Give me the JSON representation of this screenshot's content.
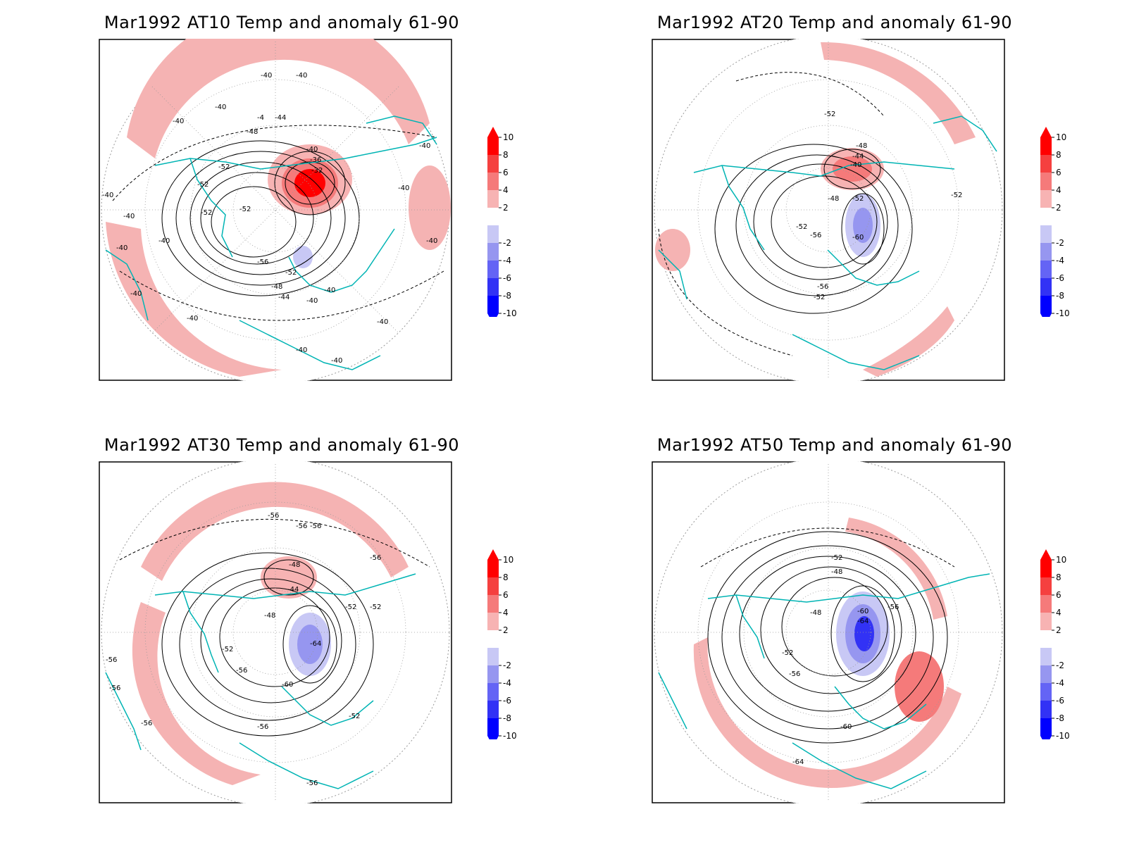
{
  "panels": [
    {
      "title": "Mar1992 AT10 Temp and anomaly 61-90",
      "contour_labels": [
        "-40",
        "-40",
        "-40",
        "-40",
        "-4",
        "-44",
        "-48",
        "-52",
        "-52",
        "-52",
        "-52",
        "-40",
        "-36",
        "-32",
        "-40",
        "-40",
        "-40",
        "-40",
        "-40",
        "-40",
        "-56",
        "-52",
        "-48",
        "-44",
        "-40",
        "-40",
        "-40",
        "-40",
        "-40",
        "-40",
        "-40",
        "-40"
      ]
    },
    {
      "title": "Mar1992 AT20 Temp and anomaly 61-90",
      "contour_labels": [
        "-52",
        "-48",
        "-44",
        "-40",
        "-48",
        "-52",
        "-52",
        "-56",
        "-60",
        "-56",
        "-52",
        "-52"
      ]
    },
    {
      "title": "Mar1992 AT30 Temp and anomaly 61-90",
      "contour_labels": [
        "-56",
        "-56",
        "-56",
        "-56",
        "-48",
        "-44",
        "-48",
        "-52",
        "-52",
        "-52",
        "-56",
        "-64",
        "-60",
        "-56",
        "-56",
        "-56",
        "-56",
        "-52",
        "-56"
      ]
    },
    {
      "title": "Mar1992 AT50 Temp and anomaly 61-90",
      "contour_labels": [
        "-52",
        "-48",
        "-60",
        "-64",
        "-56",
        "-48",
        "-52",
        "-56",
        "-60",
        "-64"
      ]
    }
  ],
  "colorbar": {
    "labels": [
      "10",
      "8",
      "6",
      "4",
      "2",
      "-2",
      "-4",
      "-6",
      "-8",
      "-10"
    ],
    "colors": [
      "#ff0000",
      "#f5403f",
      "#f57a7a",
      "#f7b3b3",
      "#ffffff",
      "#c8c8f5",
      "#9696f0",
      "#6464f5",
      "#3232f5",
      "#0000ff"
    ]
  },
  "colors": {
    "coastline": "#00b4b4",
    "warm_anomaly": "#f5b3b3",
    "cold_anomaly": "#a0a0f0",
    "contour": "#000000"
  }
}
